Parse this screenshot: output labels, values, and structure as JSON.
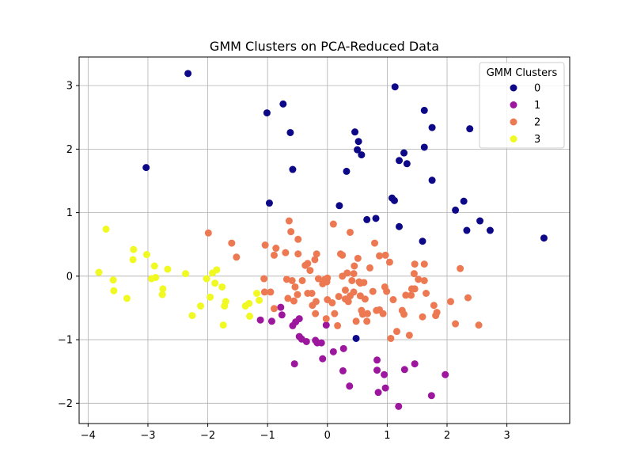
{
  "chart_data": {
    "type": "scatter",
    "title": "GMM Clusters on PCA-Reduced Data",
    "xlabel": "",
    "ylabel": "",
    "xlim": [
      -4.15,
      4.05
    ],
    "ylim": [
      -2.32,
      3.45
    ],
    "xticks": [
      -4,
      -3,
      -2,
      -1,
      0,
      1,
      2,
      3
    ],
    "yticks": [
      -2,
      -1,
      0,
      1,
      2,
      3
    ],
    "grid": true,
    "legend": {
      "title": "GMM Clusters",
      "position": "top-right"
    },
    "series": [
      {
        "name": "0",
        "color": "#0d0887",
        "points": [
          [
            -2.33,
            3.19
          ],
          [
            -3.03,
            1.71
          ],
          [
            -1.01,
            2.57
          ],
          [
            -0.74,
            2.71
          ],
          [
            -0.62,
            2.26
          ],
          [
            -0.58,
            1.68
          ],
          [
            -0.97,
            1.15
          ],
          [
            1.13,
            2.98
          ],
          [
            1.62,
            2.61
          ],
          [
            1.75,
            2.34
          ],
          [
            2.38,
            2.32
          ],
          [
            0.46,
            2.27
          ],
          [
            0.52,
            2.12
          ],
          [
            0.5,
            1.99
          ],
          [
            0.57,
            1.91
          ],
          [
            1.62,
            2.03
          ],
          [
            1.28,
            1.94
          ],
          [
            1.2,
            1.82
          ],
          [
            1.33,
            1.77
          ],
          [
            0.32,
            1.65
          ],
          [
            1.75,
            1.51
          ],
          [
            0.2,
            1.11
          ],
          [
            1.08,
            1.23
          ],
          [
            1.12,
            1.19
          ],
          [
            2.28,
            1.18
          ],
          [
            2.14,
            1.04
          ],
          [
            0.66,
            0.89
          ],
          [
            0.81,
            0.91
          ],
          [
            2.55,
            0.87
          ],
          [
            1.2,
            0.78
          ],
          [
            2.33,
            0.72
          ],
          [
            2.72,
            0.72
          ],
          [
            1.59,
            0.55
          ],
          [
            3.62,
            0.6
          ],
          [
            0.48,
            -0.98
          ]
        ]
      },
      {
        "name": "1",
        "color": "#9c179e",
        "points": [
          [
            -0.78,
            -0.49
          ],
          [
            -1.12,
            -0.69
          ],
          [
            -0.93,
            -0.71
          ],
          [
            -0.76,
            -0.61
          ],
          [
            -0.47,
            -0.67
          ],
          [
            -0.53,
            -0.72
          ],
          [
            -0.58,
            -0.78
          ],
          [
            -0.02,
            -0.77
          ],
          [
            -0.47,
            -0.95
          ],
          [
            -0.43,
            -0.99
          ],
          [
            -0.35,
            -1.03
          ],
          [
            -0.2,
            -1.01
          ],
          [
            -0.17,
            -1.05
          ],
          [
            -0.1,
            -1.05
          ],
          [
            0.1,
            -1.19
          ],
          [
            0.27,
            -1.14
          ],
          [
            -0.55,
            -1.38
          ],
          [
            -0.08,
            -1.3
          ],
          [
            0.26,
            -1.49
          ],
          [
            0.37,
            -1.73
          ],
          [
            0.83,
            -1.32
          ],
          [
            0.83,
            -1.48
          ],
          [
            0.95,
            -1.55
          ],
          [
            1.29,
            -1.47
          ],
          [
            1.46,
            -1.38
          ],
          [
            1.97,
            -1.55
          ],
          [
            0.85,
            -1.83
          ],
          [
            0.97,
            -1.76
          ],
          [
            1.74,
            -1.88
          ],
          [
            1.19,
            -2.05
          ]
        ]
      },
      {
        "name": "2",
        "color": "#ed7953",
        "points": [
          [
            -1.99,
            0.68
          ],
          [
            -1.6,
            0.52
          ],
          [
            -1.52,
            0.3
          ],
          [
            -1.04,
            0.49
          ],
          [
            -0.86,
            0.44
          ],
          [
            -0.89,
            0.33
          ],
          [
            -0.7,
            0.37
          ],
          [
            -0.64,
            0.87
          ],
          [
            -0.61,
            0.7
          ],
          [
            -0.49,
            0.58
          ],
          [
            -0.49,
            0.35
          ],
          [
            -0.33,
            0.2
          ],
          [
            -0.37,
            0.17
          ],
          [
            -0.29,
            0.09
          ],
          [
            -0.21,
            0.26
          ],
          [
            -0.18,
            0.35
          ],
          [
            0.1,
            0.82
          ],
          [
            0.22,
            0.35
          ],
          [
            0.25,
            0.33
          ],
          [
            0.38,
            0.69
          ],
          [
            0.51,
            0.28
          ],
          [
            0.71,
            0.13
          ],
          [
            0.79,
            0.52
          ],
          [
            0.87,
            0.32
          ],
          [
            0.97,
            0.33
          ],
          [
            1.04,
            0.22
          ],
          [
            1.46,
            0.19
          ],
          [
            1.62,
            0.19
          ],
          [
            2.22,
            0.12
          ],
          [
            1.45,
            0.04
          ],
          [
            1.52,
            -0.05
          ],
          [
            1.62,
            -0.07
          ],
          [
            1.41,
            -0.2
          ],
          [
            1.46,
            -0.2
          ],
          [
            1.65,
            -0.27
          ],
          [
            1.78,
            -0.46
          ],
          [
            1.83,
            -0.57
          ],
          [
            1.59,
            -0.64
          ],
          [
            1.81,
            -0.62
          ],
          [
            2.06,
            -0.4
          ],
          [
            2.14,
            -0.75
          ],
          [
            2.35,
            -0.34
          ],
          [
            2.53,
            -0.77
          ],
          [
            -1.06,
            -0.04
          ],
          [
            -0.95,
            -0.25
          ],
          [
            -1.05,
            -0.25
          ],
          [
            -0.89,
            -0.51
          ],
          [
            -0.68,
            -0.05
          ],
          [
            -0.59,
            -0.07
          ],
          [
            -0.54,
            -0.17
          ],
          [
            -0.5,
            -0.29
          ],
          [
            -0.56,
            -0.39
          ],
          [
            -0.66,
            -0.35
          ],
          [
            -0.42,
            -0.07
          ],
          [
            -0.33,
            -0.27
          ],
          [
            -0.26,
            -0.27
          ],
          [
            -0.25,
            -0.46
          ],
          [
            -0.19,
            -0.4
          ],
          [
            -0.15,
            -0.04
          ],
          [
            -0.06,
            -0.07
          ],
          [
            -0.08,
            -0.12
          ],
          [
            -0.04,
            -0.05
          ],
          [
            -0.01,
            -0.09
          ],
          [
            0.0,
            -0.37
          ],
          [
            -0.2,
            -0.59
          ],
          [
            0.08,
            -0.42
          ],
          [
            0.19,
            -0.32
          ],
          [
            0.3,
            -0.22
          ],
          [
            0.3,
            -0.36
          ],
          [
            0.35,
            -0.4
          ],
          [
            0.38,
            -0.31
          ],
          [
            0.41,
            -0.07
          ],
          [
            0.44,
            -0.25
          ],
          [
            0.44,
            0.04
          ],
          [
            0.53,
            -0.09
          ],
          [
            0.55,
            -0.31
          ],
          [
            0.57,
            -0.54
          ],
          [
            0.61,
            -0.1
          ],
          [
            0.63,
            -0.36
          ],
          [
            0.67,
            -0.59
          ],
          [
            0.66,
            -0.71
          ],
          [
            0.48,
            -0.71
          ],
          [
            0.76,
            -0.24
          ],
          [
            0.82,
            -0.54
          ],
          [
            0.87,
            -0.53
          ],
          [
            0.93,
            -0.59
          ],
          [
            0.96,
            -0.17
          ],
          [
            0.99,
            -0.24
          ],
          [
            1.1,
            -0.37
          ],
          [
            1.06,
            -0.98
          ],
          [
            1.16,
            -0.87
          ],
          [
            1.28,
            -0.6
          ],
          [
            1.37,
            -0.93
          ],
          [
            1.25,
            -0.54
          ],
          [
            1.31,
            -0.3
          ],
          [
            1.4,
            -0.3
          ],
          [
            0.25,
            0.0
          ],
          [
            0.33,
            0.05
          ],
          [
            0.12,
            -0.59
          ],
          [
            0.17,
            -0.78
          ],
          [
            -0.02,
            -0.67
          ],
          [
            0.0,
            -0.03
          ],
          [
            0.45,
            0.16
          ],
          [
            0.55,
            -0.11
          ],
          [
            0.59,
            -0.6
          ]
        ]
      },
      {
        "name": "3",
        "color": "#f0f921",
        "points": [
          [
            -3.7,
            0.74
          ],
          [
            -3.82,
            0.06
          ],
          [
            -3.58,
            -0.06
          ],
          [
            -3.57,
            -0.23
          ],
          [
            -3.35,
            -0.35
          ],
          [
            -3.24,
            0.42
          ],
          [
            -3.25,
            0.26
          ],
          [
            -3.02,
            0.34
          ],
          [
            -2.89,
            0.16
          ],
          [
            -2.94,
            -0.04
          ],
          [
            -2.87,
            -0.02
          ],
          [
            -2.75,
            -0.2
          ],
          [
            -2.76,
            -0.29
          ],
          [
            -2.67,
            0.11
          ],
          [
            -2.37,
            0.04
          ],
          [
            -2.26,
            -0.62
          ],
          [
            -2.12,
            -0.47
          ],
          [
            -2.02,
            -0.04
          ],
          [
            -1.92,
            0.05
          ],
          [
            -1.85,
            0.1
          ],
          [
            -1.88,
            -0.11
          ],
          [
            -1.96,
            -0.33
          ],
          [
            -1.76,
            -0.17
          ],
          [
            -1.7,
            -0.4
          ],
          [
            -1.72,
            -0.47
          ],
          [
            -1.74,
            -0.77
          ],
          [
            -1.37,
            -0.47
          ],
          [
            -1.31,
            -0.43
          ],
          [
            -1.3,
            -0.63
          ],
          [
            -1.18,
            -0.27
          ],
          [
            -1.14,
            -0.38
          ]
        ]
      }
    ]
  }
}
